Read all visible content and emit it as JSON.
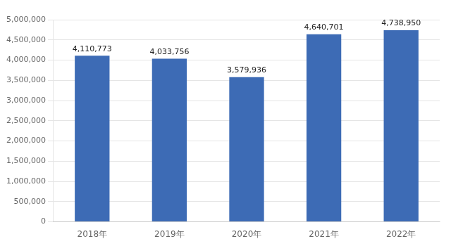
{
  "chart_data": {
    "type": "bar",
    "categories": [
      "2018年",
      "2019年",
      "2020年",
      "2021年",
      "2022年"
    ],
    "values": [
      4110773,
      4033756,
      3579936,
      4640701,
      4738950
    ],
    "value_labels": [
      "4,110,773",
      "4,033,756",
      "3,579,936",
      "4,640,701",
      "4,738,950"
    ],
    "data_labels": true,
    "color": "#3D6BB5",
    "ylim": [
      0,
      5000000
    ],
    "yticks": [
      0,
      {
        "value": 500000,
        "label": "500,000"
      },
      {
        "value": 1000000,
        "label": "1,000,000"
      },
      {
        "value": 1500000,
        "label": "1,500,000"
      },
      {
        "value": 2000000,
        "label": "2,000,000"
      },
      {
        "value": 2500000,
        "label": "2,500,000"
      },
      {
        "value": 3000000,
        "label": "3,000,000"
      },
      {
        "value": 3500000,
        "label": "3,500,000"
      },
      {
        "value": 4000000,
        "label": "4,000,000"
      },
      {
        "value": 4500000,
        "label": "4,500,000"
      },
      {
        "value": 5000000,
        "label": "5,000,000"
      }
    ],
    "grid": true
  }
}
